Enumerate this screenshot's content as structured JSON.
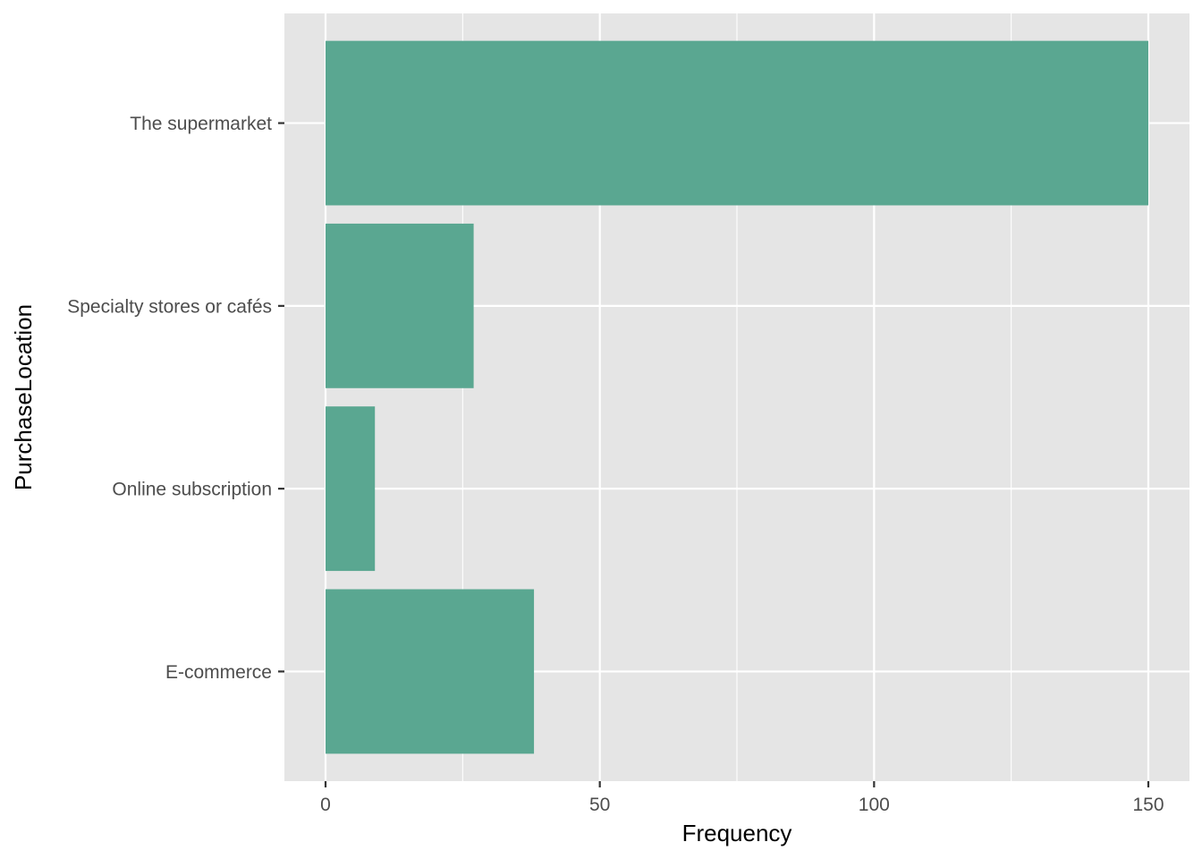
{
  "chart_data": {
    "type": "bar",
    "orientation": "horizontal",
    "categories": [
      "The supermarket",
      "Specialty stores or cafés",
      "Online subscription",
      "E-commerce"
    ],
    "values": [
      150,
      27,
      9,
      38
    ],
    "xlabel": "Frequency",
    "ylabel": "PurchaseLocation",
    "xlim": [
      -7.5,
      157.5
    ],
    "x_ticks": [
      0,
      50,
      100,
      150
    ],
    "x_tick_labels": [
      "0",
      "50",
      "100",
      "150"
    ],
    "x_minor_ticks": [
      25,
      75,
      125
    ],
    "bar_color": "#5aa791",
    "panel_color": "#e5e5e5",
    "grid": true
  }
}
